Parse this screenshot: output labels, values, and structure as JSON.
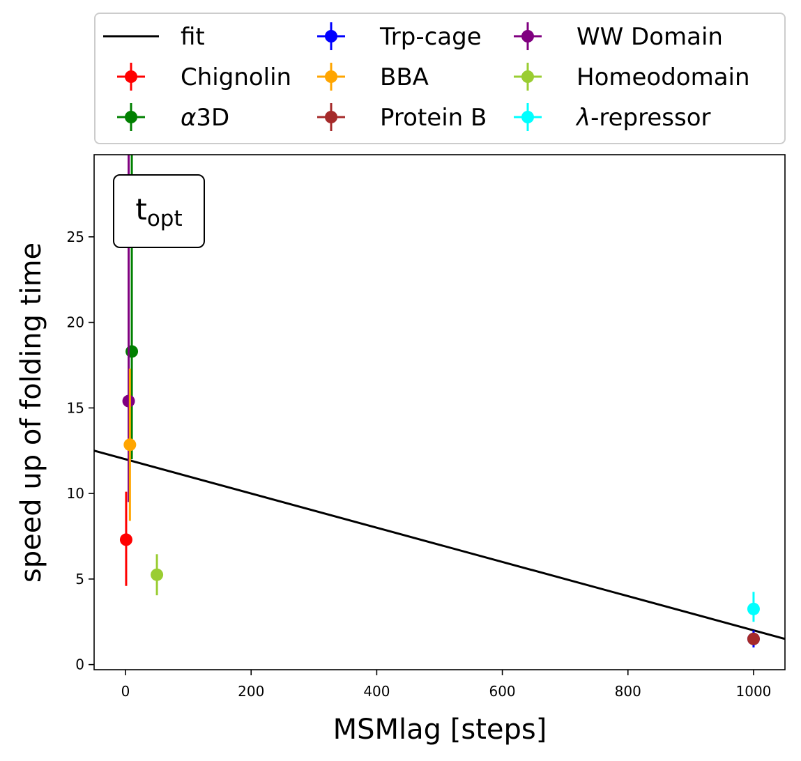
{
  "chart_data": {
    "type": "scatter",
    "xlabel": "MSMlag [steps]",
    "ylabel": "speed up of folding time",
    "xlim": [
      -50,
      1050
    ],
    "ylim": [
      -0.3,
      29.8
    ],
    "xticks": [
      0,
      200,
      400,
      600,
      800,
      1000
    ],
    "yticks": [
      0,
      5,
      10,
      15,
      20,
      25
    ],
    "grid": false,
    "legend_position": "top, outside plot (3 columns)",
    "annotation": {
      "main": "t",
      "subscript": "opt"
    },
    "fit": {
      "name": "fit",
      "color": "#000000",
      "x": [
        -50,
        1050
      ],
      "y": [
        12.5,
        1.5
      ]
    },
    "series": [
      {
        "name": "Chignolin",
        "label_prefix": "",
        "label_suffix": "Chignolin",
        "color": "#ff0000",
        "x": 1,
        "y": 7.3,
        "yerr_low": 4.6,
        "yerr_high": 10.1
      },
      {
        "name": "α3D",
        "label_prefix": "α",
        "label_suffix": "3D",
        "color": "#008000",
        "x": 10,
        "y": 18.3,
        "yerr_low": 12.0,
        "yerr_high": 30.0
      },
      {
        "name": "Trp-cage",
        "label_prefix": "",
        "label_suffix": "Trp-cage",
        "color": "#0000ff",
        "x": 1000,
        "y": 1.5,
        "yerr_low": 1.0,
        "yerr_high": 2.0
      },
      {
        "name": "BBA",
        "label_prefix": "",
        "label_suffix": "BBA",
        "color": "#ffa500",
        "x": 7,
        "y": 12.85,
        "yerr_low": 8.4,
        "yerr_high": 17.3
      },
      {
        "name": "Protein B",
        "label_prefix": "",
        "label_suffix": "Protein B",
        "color": "#a52a2a",
        "x": 1000,
        "y": 1.5,
        "yerr_low": 1.2,
        "yerr_high": 1.8
      },
      {
        "name": "WW Domain",
        "label_prefix": "",
        "label_suffix": "WW Domain",
        "color": "#800080",
        "x": 5,
        "y": 15.4,
        "yerr_low": 9.5,
        "yerr_high": 30.0
      },
      {
        "name": "Homeodomain",
        "label_prefix": "",
        "label_suffix": "Homeodomain",
        "color": "#9acd32",
        "x": 50,
        "y": 5.25,
        "yerr_low": 4.05,
        "yerr_high": 6.45
      },
      {
        "name": "λ-repressor",
        "label_prefix": "λ",
        "label_suffix": "-repressor",
        "color": "#00ffff",
        "x": 1000,
        "y": 3.25,
        "yerr_low": 2.5,
        "yerr_high": 4.25
      }
    ]
  }
}
